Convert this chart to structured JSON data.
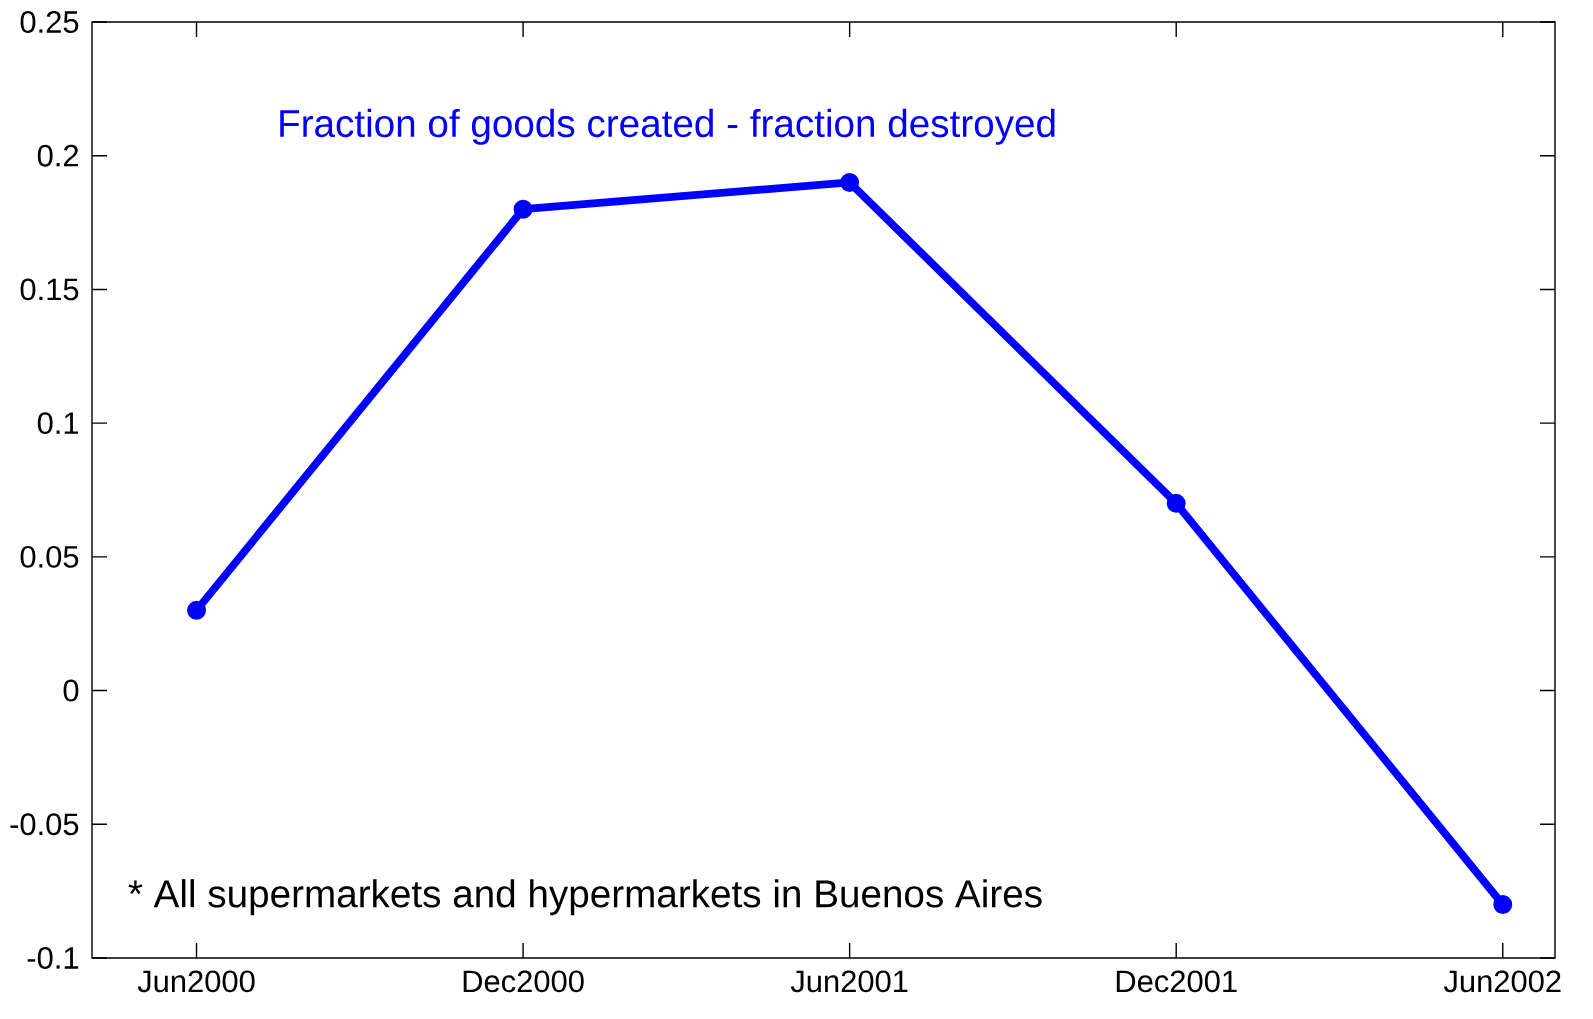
{
  "chart_data": {
    "type": "line",
    "categories": [
      "Jun2000",
      "Dec2000",
      "Jun2001",
      "Dec2001",
      "Jun2002"
    ],
    "series": [
      {
        "name": "Fraction of goods created - fraction destroyed",
        "color": "#0000ff",
        "values": [
          0.03,
          0.18,
          0.19,
          0.07,
          -0.08
        ]
      }
    ],
    "ylim": [
      -0.1,
      0.25
    ],
    "yticks": [
      -0.1,
      -0.05,
      0,
      0.05,
      0.1,
      0.15,
      0.2,
      0.25
    ],
    "annotations": [
      "* All supermarkets and hypermarkets in Buenos Aires"
    ],
    "grid": false,
    "legend": false,
    "marker": "circle",
    "line_style": "solid"
  }
}
